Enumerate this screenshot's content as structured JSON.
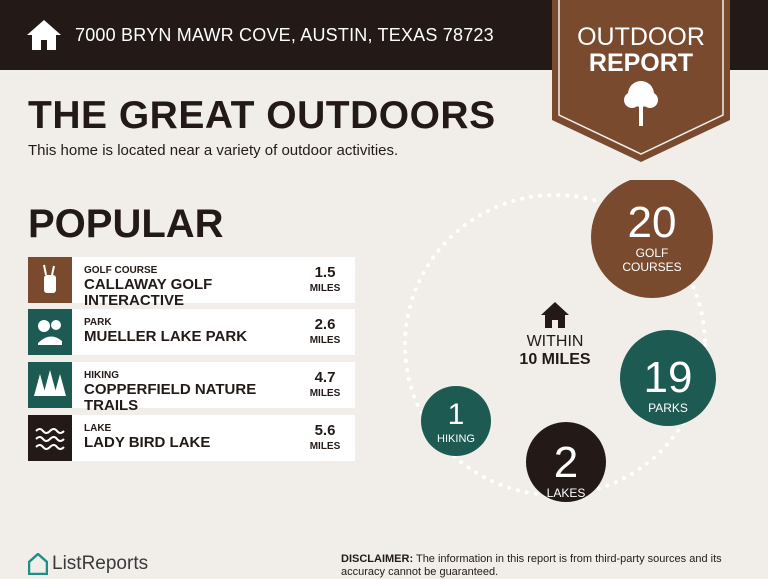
{
  "header": {
    "address": "7000 BRYN MAWR COVE, AUSTIN, TEXAS 78723"
  },
  "badge": {
    "line1": "OUTDOOR",
    "line2": "REPORT"
  },
  "title": "THE GREAT OUTDOORS",
  "subtitle": "This home is located near a variety of outdoor activities.",
  "popular": {
    "heading": "POPULAR",
    "items": [
      {
        "category": "GOLF COURSE",
        "name": "CALLAWAY GOLF INTERACTIVE",
        "distance": 1.5,
        "unit": "MILES"
      },
      {
        "category": "PARK",
        "name": "MUELLER LAKE PARK",
        "distance": 2.6,
        "unit": "MILES"
      },
      {
        "category": "HIKING",
        "name": "COPPERFIELD NATURE TRAILS",
        "distance": 4.7,
        "unit": "MILES"
      },
      {
        "category": "LAKE",
        "name": "LADY BIRD LAKE",
        "distance": 5.6,
        "unit": "MILES"
      }
    ]
  },
  "radius": {
    "line1": "WITHIN",
    "line2": "10 MILES"
  },
  "counts": [
    {
      "count": 20,
      "label": "GOLF COURSES"
    },
    {
      "count": 19,
      "label": "PARKS"
    },
    {
      "count": 2,
      "label": "LAKES"
    },
    {
      "count": 1,
      "label": "HIKING"
    }
  ],
  "footer": {
    "brand": "ListReports",
    "disclaimer_label": "DISCLAIMER:",
    "disclaimer": "The information in this report is from third-party sources and its accuracy cannot be guaranteed."
  }
}
